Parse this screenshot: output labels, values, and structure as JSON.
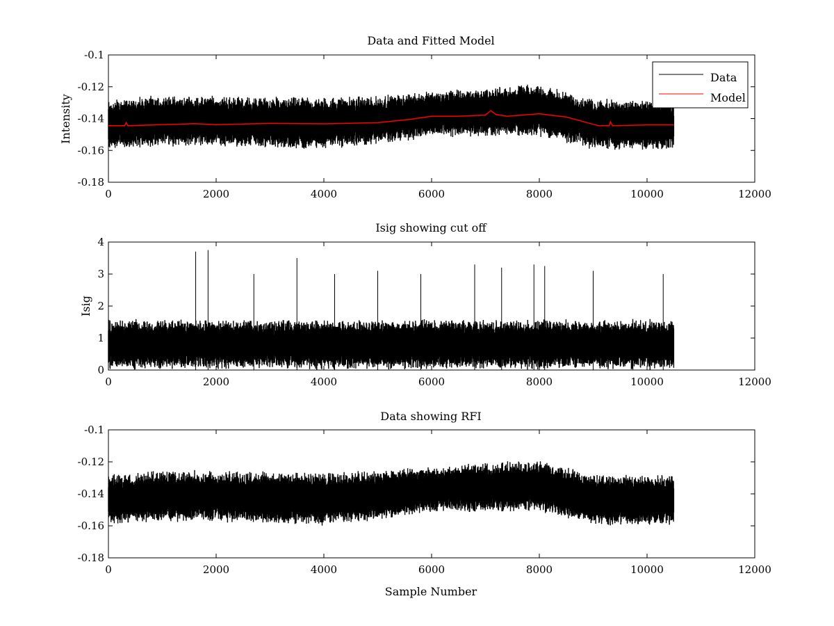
{
  "chart_data": [
    {
      "type": "line",
      "title": "Data and Fitted Model",
      "xlabel": "",
      "ylabel": "Intensity",
      "xlim": [
        0,
        12000
      ],
      "ylim": [
        -0.18,
        -0.1
      ],
      "xticks": [
        0,
        2000,
        4000,
        6000,
        8000,
        10000,
        12000
      ],
      "yticks": [
        -0.18,
        -0.16,
        -0.14,
        -0.12,
        -0.1
      ],
      "x_tick_labels": [
        "0",
        "2000",
        "4000",
        "6000",
        "8000",
        "10000",
        "12000"
      ],
      "y_tick_labels": [
        "-0.18",
        "-0.16",
        "-0.14",
        "-0.12",
        "-0.1"
      ],
      "legend": "top-right",
      "grid": false,
      "n_samples": 10500,
      "series": [
        {
          "name": "Data",
          "color": "#000000",
          "style": "noise",
          "x": [
            0,
            1000,
            2000,
            3000,
            4000,
            5000,
            6000,
            7000,
            8000,
            9000,
            10000,
            10500
          ],
          "y_low": [
            -0.16,
            -0.158,
            -0.158,
            -0.159,
            -0.16,
            -0.157,
            -0.152,
            -0.152,
            -0.152,
            -0.16,
            -0.16,
            -0.16
          ],
          "y_high": [
            -0.127,
            -0.125,
            -0.125,
            -0.126,
            -0.126,
            -0.125,
            -0.122,
            -0.12,
            -0.118,
            -0.127,
            -0.128,
            -0.128
          ]
        },
        {
          "name": "Model",
          "color": "#ff0000",
          "style": "line",
          "x": [
            0,
            300,
            330,
            360,
            1000,
            1600,
            2000,
            3000,
            4000,
            5000,
            5600,
            6000,
            6500,
            7000,
            7100,
            7200,
            7400,
            8000,
            8500,
            9100,
            9300,
            9320,
            9360,
            10000,
            10500
          ],
          "y": [
            -0.1445,
            -0.1445,
            -0.1425,
            -0.1445,
            -0.1438,
            -0.1432,
            -0.1438,
            -0.143,
            -0.1433,
            -0.1426,
            -0.1405,
            -0.1385,
            -0.1385,
            -0.1378,
            -0.135,
            -0.1375,
            -0.1385,
            -0.137,
            -0.139,
            -0.1445,
            -0.1445,
            -0.142,
            -0.1445,
            -0.144,
            -0.144
          ]
        }
      ]
    },
    {
      "type": "line",
      "title": "Isig showing cut off",
      "xlabel": "",
      "ylabel": "Isig",
      "xlim": [
        0,
        12000
      ],
      "ylim": [
        0,
        4
      ],
      "xticks": [
        0,
        2000,
        4000,
        6000,
        8000,
        10000,
        12000
      ],
      "yticks": [
        0,
        1,
        2,
        3,
        4
      ],
      "x_tick_labels": [
        "0",
        "2000",
        "4000",
        "6000",
        "8000",
        "10000",
        "12000"
      ],
      "y_tick_labels": [
        "0",
        "1",
        "2",
        "3",
        "4"
      ],
      "grid": false,
      "n_samples": 10500,
      "series": [
        {
          "name": "Isig",
          "color": "#000000",
          "style": "noise",
          "x": [
            0,
            10500
          ],
          "y_low": [
            0,
            0
          ],
          "y_high": [
            1.6,
            1.6
          ],
          "peaks": [
            {
              "x": 1620,
              "y": 3.7
            },
            {
              "x": 1850,
              "y": 3.75
            },
            {
              "x": 2700,
              "y": 3.0
            },
            {
              "x": 3500,
              "y": 3.5
            },
            {
              "x": 4200,
              "y": 3.0
            },
            {
              "x": 5000,
              "y": 3.1
            },
            {
              "x": 5800,
              "y": 3.0
            },
            {
              "x": 6800,
              "y": 3.3
            },
            {
              "x": 7300,
              "y": 3.2
            },
            {
              "x": 7900,
              "y": 3.3
            },
            {
              "x": 8100,
              "y": 3.25
            },
            {
              "x": 9000,
              "y": 3.1
            },
            {
              "x": 10300,
              "y": 3.0
            }
          ]
        }
      ]
    },
    {
      "type": "line",
      "title": "Data showing RFI",
      "xlabel": "Sample Number",
      "ylabel": "",
      "xlim": [
        0,
        12000
      ],
      "ylim": [
        -0.18,
        -0.1
      ],
      "xticks": [
        0,
        2000,
        4000,
        6000,
        8000,
        10000,
        12000
      ],
      "yticks": [
        -0.18,
        -0.16,
        -0.14,
        -0.12,
        -0.1
      ],
      "x_tick_labels": [
        "0",
        "2000",
        "4000",
        "6000",
        "8000",
        "10000",
        "12000"
      ],
      "y_tick_labels": [
        "-0.18",
        "-0.16",
        "-0.14",
        "-0.12",
        "-0.1"
      ],
      "grid": false,
      "n_samples": 10500,
      "series": [
        {
          "name": "Data",
          "color": "#000000",
          "style": "noise",
          "x": [
            0,
            1000,
            2000,
            3000,
            4000,
            5000,
            6000,
            7000,
            8000,
            9000,
            10000,
            10500
          ],
          "y_low": [
            -0.16,
            -0.158,
            -0.158,
            -0.159,
            -0.16,
            -0.157,
            -0.152,
            -0.152,
            -0.152,
            -0.16,
            -0.16,
            -0.16
          ],
          "y_high": [
            -0.127,
            -0.125,
            -0.125,
            -0.126,
            -0.126,
            -0.125,
            -0.122,
            -0.12,
            -0.118,
            -0.127,
            -0.128,
            -0.128
          ]
        }
      ]
    }
  ]
}
